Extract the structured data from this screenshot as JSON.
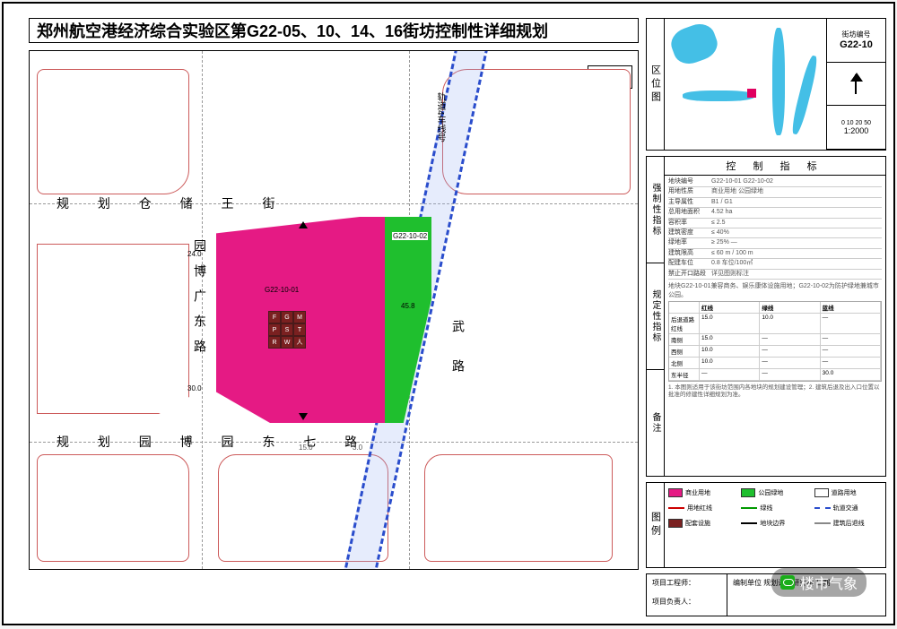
{
  "colors": {
    "main_parcel": "#e51a84",
    "green_parcel": "#1fbf2e",
    "block_outline": "#cc5a5a",
    "rail_dash": "#2a4dcc",
    "river": "#44bfe6",
    "icon_cell": "#7a2020"
  },
  "title": "郑州航空港经济综合实验区第G22-05、10、14、16街坊控制性详细规划",
  "tuze_label": "图 则",
  "roads": {
    "top_h": "规 划 仓 储 王 街",
    "bot_h": "规 划 园 博 园 东 七 路",
    "left_v": "园博广东路",
    "right_v": "武路",
    "rail": "轨道4车线号"
  },
  "setbacks": {
    "n": "24.0",
    "s": "30.0"
  },
  "parcel": {
    "code1": "G22-10-01",
    "green_code": "G22-10-02",
    "area_g": "45.8"
  },
  "icon_labels": [
    "F",
    "G",
    "M",
    "P",
    "S",
    "T",
    "R",
    "W",
    "人"
  ],
  "location": {
    "side": "区位图",
    "block_no_label": "街坊编号",
    "block_no": "G22-10",
    "scale": "1:2000",
    "scalebar": "0 10 20 50"
  },
  "indicators": {
    "title": "控 制 指 标",
    "sections": [
      "强制性指标",
      "规定性指标",
      "备注"
    ],
    "rows1": [
      {
        "k": "地块编号",
        "v": "G22-10-01   G22-10-02"
      },
      {
        "k": "用地性质",
        "v": "商业用地   公园绿地"
      },
      {
        "k": "主导属性",
        "v": "B1 / G1"
      },
      {
        "k": "总用地面积",
        "v": "4.52 ha"
      },
      {
        "k": "容积率",
        "v": "≤ 2.5"
      },
      {
        "k": "建筑密度",
        "v": "≤ 40%"
      },
      {
        "k": "绿地率",
        "v": "≥ 25%   —"
      },
      {
        "k": "建筑限高",
        "v": "≤ 60 m / 100 m"
      },
      {
        "k": "配建车位",
        "v": "0.8 车位/100㎡"
      },
      {
        "k": "禁止开口路段",
        "v": "详见图则标注"
      }
    ],
    "note_text": "地块G22-10-01兼容商务、娱乐康体设施用地；G22-10-02为防护绿地兼城市公园。",
    "rows2_header": [
      "",
      "红线",
      "绿线",
      "蓝线"
    ],
    "rows2": [
      [
        "后退道路红线",
        "15.0",
        "10.0",
        "—"
      ],
      [
        "南侧",
        "15.0",
        "—",
        "—"
      ],
      [
        "西侧",
        "10.0",
        "—",
        "—"
      ],
      [
        "北侧",
        "10.0",
        "—",
        "—"
      ],
      [
        "东半径",
        "—",
        "—",
        "30.0"
      ]
    ],
    "remark": "1. 本图则适用于该街坊范围内各地块的规划建设管理；2. 建筑后退及出入口位置以批准的修建性详细规划为准。"
  },
  "legend": {
    "side": "图例",
    "items": [
      {
        "t": "sw",
        "c": "#e51a84",
        "l": "商业用地"
      },
      {
        "t": "sw",
        "c": "#1fbf2e",
        "l": "公园绿地"
      },
      {
        "t": "sw",
        "c": "#ffffff",
        "l": "道路用地"
      },
      {
        "t": "ln",
        "c": "#cc0000",
        "l": "用地红线"
      },
      {
        "t": "ln",
        "c": "#009900",
        "l": "绿线"
      },
      {
        "t": "ln-d",
        "c": "#2a4dcc",
        "l": "轨道交通"
      },
      {
        "t": "sw",
        "c": "#7a2020",
        "l": "配套设施"
      },
      {
        "t": "ln",
        "c": "#000000",
        "l": "地块边界"
      },
      {
        "t": "ln",
        "c": "#888888",
        "l": "建筑后退线"
      }
    ]
  },
  "footer": {
    "left1": "项目工程师：",
    "left2": "项目负责人：",
    "right": "编制单位  规划设计研究院  日期"
  },
  "watermark": "楼市气象"
}
